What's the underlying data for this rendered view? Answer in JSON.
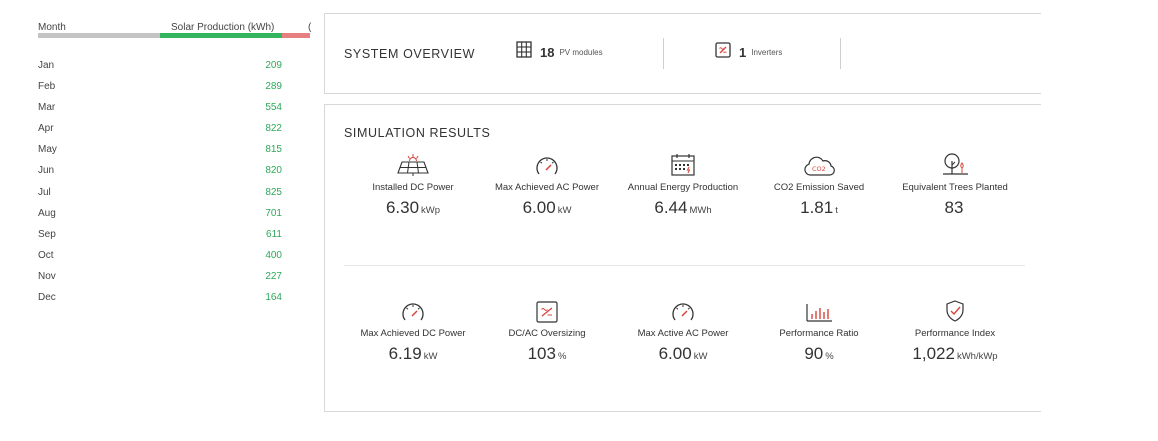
{
  "table": {
    "col_month": "Month",
    "col_production": "Solar Production (kWh)",
    "col_cut": "(",
    "rows": [
      {
        "month": "Jan",
        "value": "209"
      },
      {
        "month": "Feb",
        "value": "289"
      },
      {
        "month": "Mar",
        "value": "554"
      },
      {
        "month": "Apr",
        "value": "822"
      },
      {
        "month": "May",
        "value": "815"
      },
      {
        "month": "Jun",
        "value": "820"
      },
      {
        "month": "Jul",
        "value": "825"
      },
      {
        "month": "Aug",
        "value": "701"
      },
      {
        "month": "Sep",
        "value": "611"
      },
      {
        "month": "Oct",
        "value": "400"
      },
      {
        "month": "Nov",
        "value": "227"
      },
      {
        "month": "Dec",
        "value": "164"
      }
    ]
  },
  "overview": {
    "title": "SYSTEM OVERVIEW",
    "pv_count": "18",
    "pv_label": "PV modules",
    "inv_count": "1",
    "inv_label": "Inverters"
  },
  "results": {
    "title": "SIMULATION RESULTS",
    "metrics": [
      {
        "icon": "solar-panel-icon",
        "label": "Installed DC Power",
        "value": "6.30",
        "unit": "kWp"
      },
      {
        "icon": "gauge-icon",
        "label": "Max Achieved AC Power",
        "value": "6.00",
        "unit": "kW"
      },
      {
        "icon": "calendar-icon",
        "label": "Annual Energy Production",
        "value": "6.44",
        "unit": "MWh"
      },
      {
        "icon": "co2-cloud-icon",
        "label": "CO2 Emission Saved",
        "value": "1.81",
        "unit": "t"
      },
      {
        "icon": "tree-icon",
        "label": "Equivalent Trees Planted",
        "value": "83",
        "unit": ""
      },
      {
        "icon": "gauge-icon",
        "label": "Max Achieved DC Power",
        "value": "6.19",
        "unit": "kW"
      },
      {
        "icon": "inverter-icon",
        "label": "DC/AC Oversizing",
        "value": "103",
        "unit": "%"
      },
      {
        "icon": "gauge-icon",
        "label": "Max Active AC Power",
        "value": "6.00",
        "unit": "kW"
      },
      {
        "icon": "bar-chart-icon",
        "label": "Performance Ratio",
        "value": "90",
        "unit": "%"
      },
      {
        "icon": "shield-check-icon",
        "label": "Performance Index",
        "value": "1,022",
        "unit": "kWh/kWp"
      }
    ]
  },
  "colors": {
    "green": "#34b45f",
    "red": "#e67f7f",
    "gray": "#c4c4c4",
    "icon_red": "#d9443a"
  }
}
